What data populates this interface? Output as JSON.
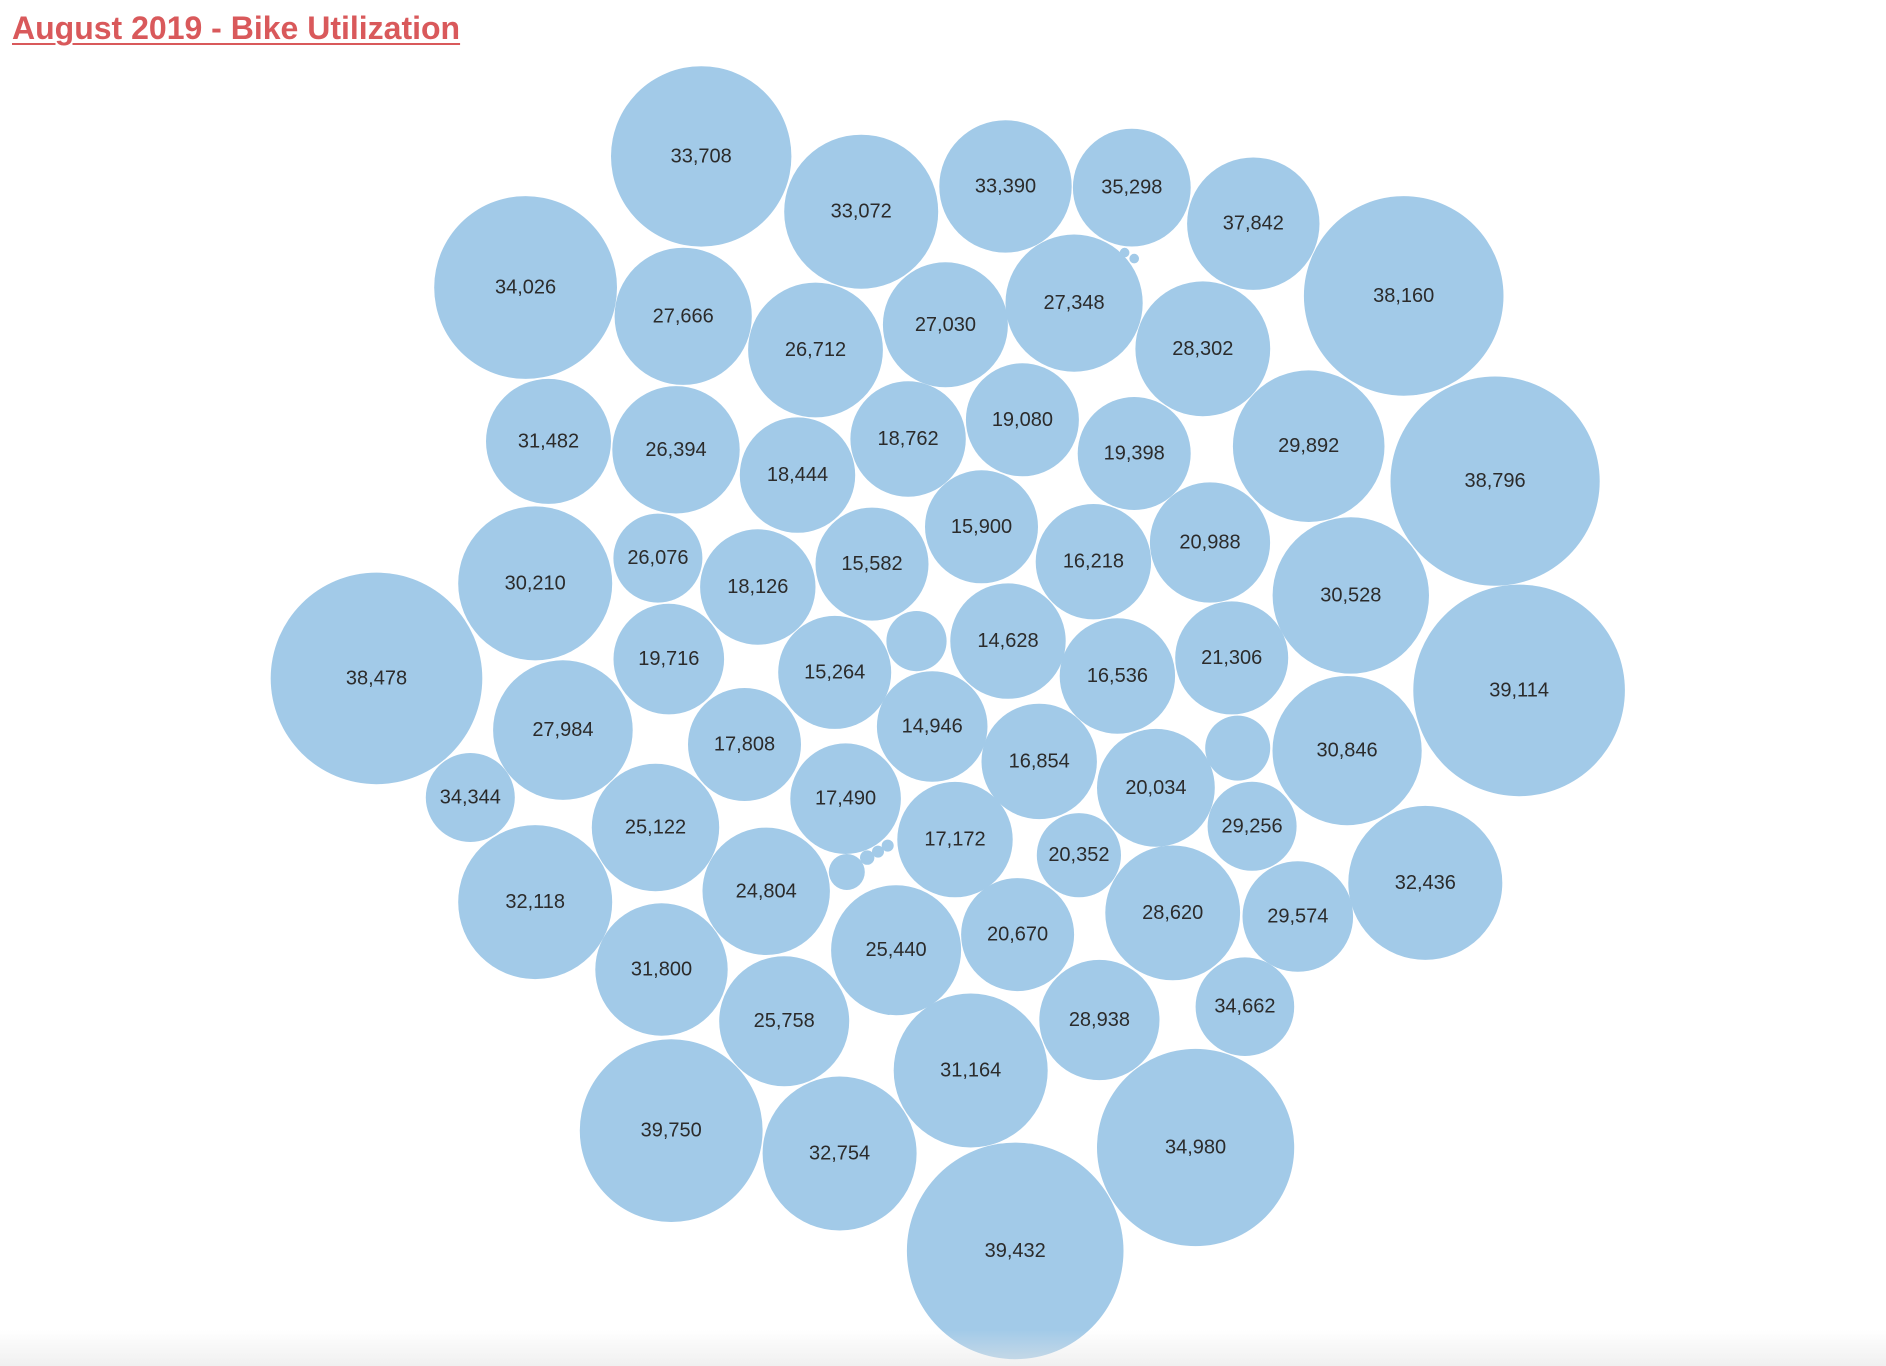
{
  "title": "August 2019 - Bike Utilization",
  "colors": {
    "bubble": "#a2cae8",
    "title": "#d9595b",
    "label": "#2b2b2b"
  },
  "chart_data": {
    "type": "bubble",
    "title": "August 2019 - Bike Utilization",
    "values": [
      33708,
      33072,
      33390,
      35298,
      37842,
      34026,
      27666,
      26712,
      27030,
      27348,
      28302,
      38160,
      31482,
      26394,
      18444,
      18762,
      19080,
      19398,
      29892,
      38796,
      30210,
      26076,
      18126,
      15582,
      15900,
      16218,
      20988,
      30528,
      38478,
      19716,
      15264,
      14628,
      16536,
      21306,
      39114,
      27984,
      17808,
      14946,
      16854,
      20034,
      30846,
      34344,
      25122,
      17490,
      17172,
      20352,
      29256,
      32436,
      32118,
      24804,
      28620,
      29574,
      25440,
      20670,
      31800,
      25758,
      28938,
      34662,
      31164,
      39750,
      32754,
      34980,
      39432
    ],
    "unlabeled_bubbles": 8
  }
}
